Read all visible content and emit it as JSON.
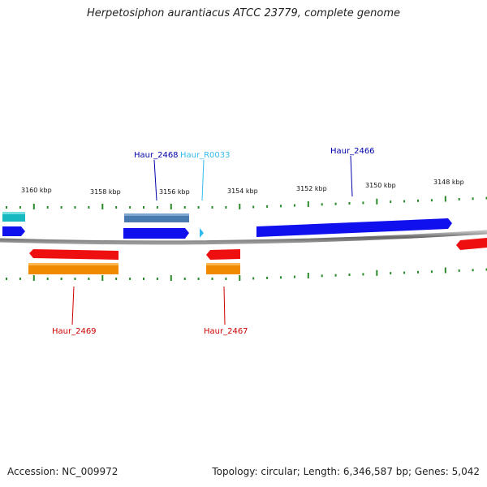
{
  "title": "Herpetosiphon aurantiacus ATCC 23779, complete genome",
  "footer": {
    "accession": "Accession: NC_009972",
    "summary": "Topology: circular; Length: 6,346,587 bp; Genes: 5,042"
  },
  "scale_labels": [
    "3160 kbp",
    "3158 kbp",
    "3156 kbp",
    "3154 kbp",
    "3152 kbp",
    "3150 kbp",
    "3148 kbp"
  ],
  "gene_labels": [
    {
      "text": "Haur_2468",
      "color": "#0000aa"
    },
    {
      "text": "Haur_R0033",
      "color": "#33bbee"
    },
    {
      "text": "Haur_2466",
      "color": "#0000aa"
    },
    {
      "text": "Haur_2469",
      "color": "#cc0000"
    },
    {
      "text": "Haur_2467",
      "color": "#cc0000"
    }
  ],
  "colors": {
    "forward_gene": "#1010ee",
    "forward_cds": "#4a7bb0",
    "reverse_gene": "#ee1010",
    "reverse_cds": "#f08a00",
    "rna": "#33bbee",
    "tick": "#2a8a2a",
    "backbone": "#777777"
  }
}
